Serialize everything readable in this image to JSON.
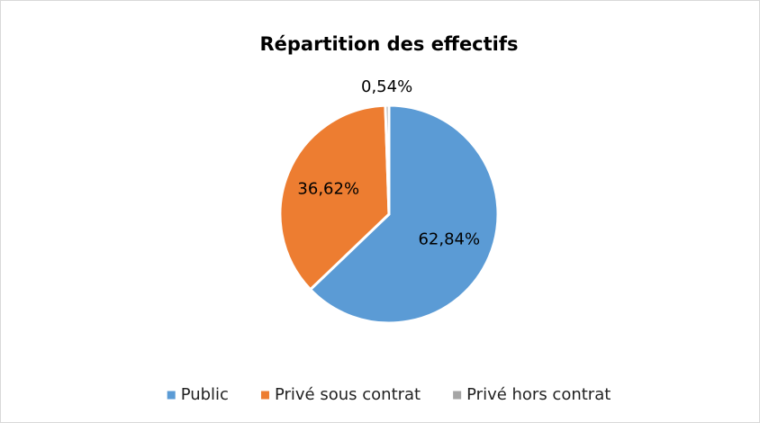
{
  "chart_data": {
    "type": "pie",
    "title": "Répartition des effectifs",
    "categories": [
      "Public",
      "Privé sous contrat",
      "Privé hors contrat"
    ],
    "values": [
      62.84,
      36.62,
      0.54
    ],
    "value_labels": [
      "62,84%",
      "36,62%",
      "0,54%"
    ],
    "colors": [
      "#5b9bd5",
      "#ed7d31",
      "#a5a5a5"
    ],
    "legend": "bottom"
  }
}
